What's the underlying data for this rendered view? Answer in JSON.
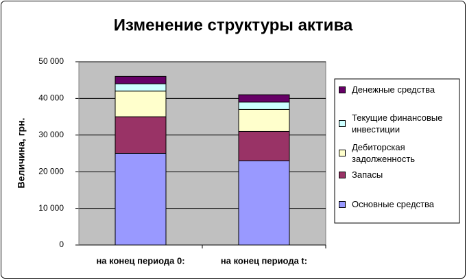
{
  "chart_data": {
    "type": "stacked_bar",
    "title": "Изменение структуры актива",
    "y_label": "Величина, грн.",
    "categories": [
      "на конец периода 0:",
      "на конец периода t:"
    ],
    "series": [
      {
        "name": "Основные средства",
        "color": "#9999ff",
        "values": [
          25000,
          23000
        ]
      },
      {
        "name": "Запасы",
        "color": "#993366",
        "values": [
          10000,
          8000
        ]
      },
      {
        "name": "Дебиторская задолженность",
        "color": "#ffffcc",
        "values": [
          7000,
          6000
        ]
      },
      {
        "name": "Текущие финансовые инвестиции",
        "color": "#ccffff",
        "values": [
          2000,
          2000
        ]
      },
      {
        "name": "Денежные средства",
        "color": "#660066",
        "values": [
          2000,
          2000
        ]
      }
    ],
    "ylim": [
      0,
      50000
    ],
    "yticks": [
      0,
      {
        "value": 10000,
        "label": "10 000"
      },
      {
        "value": 20000,
        "label": "20 000"
      },
      {
        "value": 30000,
        "label": "30 000"
      },
      {
        "value": 40000,
        "label": "40 000"
      },
      {
        "value": 50000,
        "label": "50 000"
      }
    ],
    "grid": true,
    "legend": "right"
  }
}
